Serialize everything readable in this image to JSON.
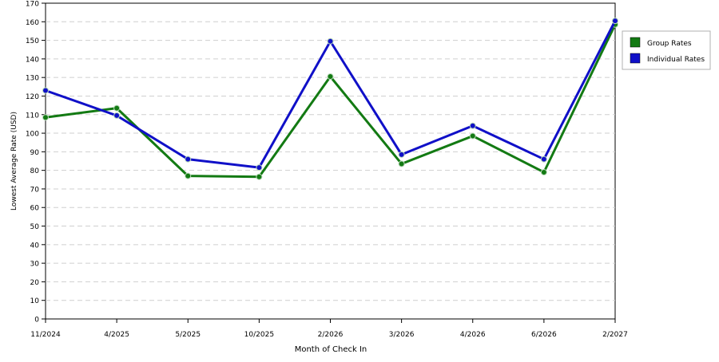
{
  "chart_data": {
    "type": "line",
    "categories": [
      "11/2024",
      "4/2025",
      "5/2025",
      "10/2025",
      "2/2026",
      "3/2026",
      "4/2026",
      "6/2026",
      "2/2027"
    ],
    "series": [
      {
        "name": "Group Rates",
        "color": "#137a13",
        "values": [
          108.5,
          113.5,
          77,
          76.5,
          130.5,
          83.5,
          98.5,
          79,
          158.5
        ]
      },
      {
        "name": "Individual Rates",
        "color": "#1010c8",
        "values": [
          123,
          109.5,
          86,
          81.5,
          149.5,
          88.5,
          104,
          86,
          160.5
        ]
      }
    ],
    "title": "",
    "xlabel": "Month of Check In",
    "ylabel": "Lowest Average Rate (USD)",
    "ylim": [
      0,
      170
    ],
    "yticks": [
      0,
      10,
      20,
      30,
      40,
      50,
      60,
      70,
      80,
      90,
      100,
      110,
      120,
      130,
      140,
      150,
      160,
      170
    ],
    "grid": true,
    "legend_position": "top-right"
  }
}
